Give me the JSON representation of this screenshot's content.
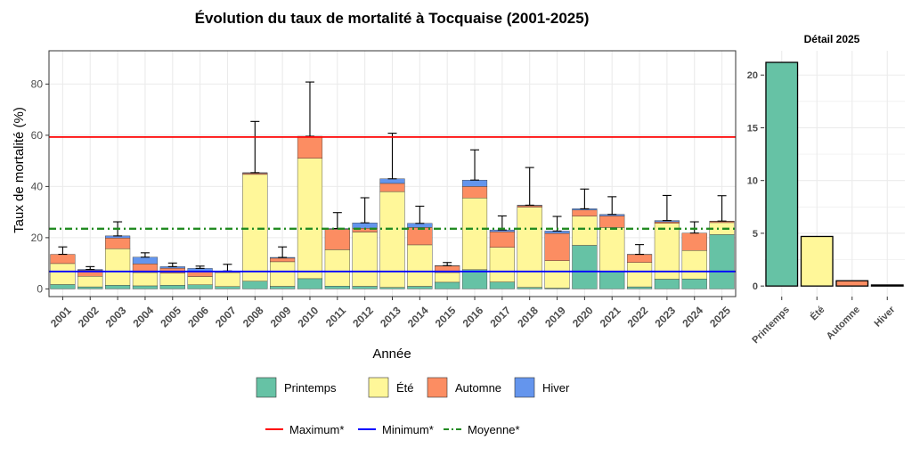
{
  "chart_data": [
    {
      "type": "bar",
      "stacked": true,
      "title": "Évolution du taux de mortalité à Tocquaise (2001-2025)",
      "xlabel": "Année",
      "ylabel": "Taux de mortalité (%)",
      "ylim": [
        -3,
        93
      ],
      "yticks": [
        0,
        20,
        40,
        60,
        80
      ],
      "grid": true,
      "categories": [
        "2001",
        "2002",
        "2003",
        "2004",
        "2005",
        "2006",
        "2007",
        "2008",
        "2009",
        "2010",
        "2011",
        "2012",
        "2013",
        "2014",
        "2015",
        "2016",
        "2017",
        "2018",
        "2019",
        "2020",
        "2021",
        "2022",
        "2023",
        "2024",
        "2025"
      ],
      "series": [
        {
          "name": "Printemps",
          "color": "#66C2A5",
          "values": [
            1.7,
            0.8,
            1.4,
            1.2,
            1.4,
            1.6,
            0.9,
            3.0,
            1.0,
            4.0,
            1.1,
            1.0,
            0.6,
            1.0,
            2.6,
            7.5,
            2.7,
            0.6,
            0.3,
            17.0,
            6.9,
            0.8,
            3.8,
            3.9,
            21.2
          ]
        },
        {
          "name": "Été",
          "color": "#FFF799",
          "values": [
            8.2,
            4.1,
            14.3,
            5.2,
            4.8,
            3.2,
            5.5,
            41.7,
            9.6,
            47.0,
            14.2,
            21.2,
            37.4,
            16.2,
            3.8,
            28.0,
            13.5,
            31.3,
            10.7,
            11.4,
            17.1,
            9.5,
            21.8,
            11.1,
            4.7
          ]
        },
        {
          "name": "Automne",
          "color": "#FC8D62",
          "values": [
            3.6,
            2.4,
            4.2,
            3.4,
            1.9,
            2.1,
            0.3,
            0.5,
            1.4,
            8.6,
            8.0,
            1.5,
            3.2,
            6.8,
            2.6,
            4.5,
            6.1,
            0.6,
            10.7,
            2.4,
            4.5,
            3.1,
            0.6,
            6.8,
            0.5
          ]
        },
        {
          "name": "Hiver",
          "color": "#6495ED",
          "values": [
            0.0,
            0.3,
            0.8,
            2.6,
            0.6,
            1.1,
            0.3,
            0.2,
            0.3,
            0.0,
            0.3,
            2.1,
            1.8,
            1.6,
            0.1,
            2.5,
            0.7,
            0.2,
            0.9,
            0.5,
            0.6,
            0.1,
            0.5,
            0.0,
            0.1
          ]
        }
      ],
      "error_upper": [
        16.4,
        8.7,
        26.2,
        14.1,
        10.1,
        8.9,
        9.6,
        65.4,
        16.4,
        80.8,
        29.8,
        35.6,
        60.8,
        32.3,
        10.3,
        54.3,
        28.5,
        47.4,
        28.3,
        39.0,
        36.0,
        17.3,
        36.5,
        26.2,
        36.4
      ],
      "reference_lines": [
        {
          "name": "Maximum*",
          "value": 59.3,
          "color": "#FF0000",
          "style": "solid"
        },
        {
          "name": "Minimum*",
          "value": 6.8,
          "color": "#0000FF",
          "style": "solid"
        },
        {
          "name": "Moyenne*",
          "value": 23.5,
          "color": "#228B22",
          "style": "dashdot"
        }
      ]
    },
    {
      "type": "bar",
      "title": "Détail 2025",
      "categories": [
        "Printemps",
        "Été",
        "Automne",
        "Hiver"
      ],
      "values": [
        21.2,
        4.7,
        0.5,
        0.1
      ],
      "colors": [
        "#66C2A5",
        "#FFF799",
        "#FC8D62",
        "#6495ED"
      ],
      "ylim": [
        -1,
        22.3
      ],
      "yticks": [
        0,
        5,
        10,
        15,
        20
      ],
      "grid": true
    }
  ],
  "legend": {
    "seasons": [
      "Printemps",
      "Été",
      "Automne",
      "Hiver"
    ],
    "lines": [
      "Maximum*",
      "Minimum*",
      "Moyenne*"
    ]
  },
  "colors": {
    "panel_border": "#333333",
    "grid": "#ebebeb",
    "bar_outline": "#000000"
  }
}
